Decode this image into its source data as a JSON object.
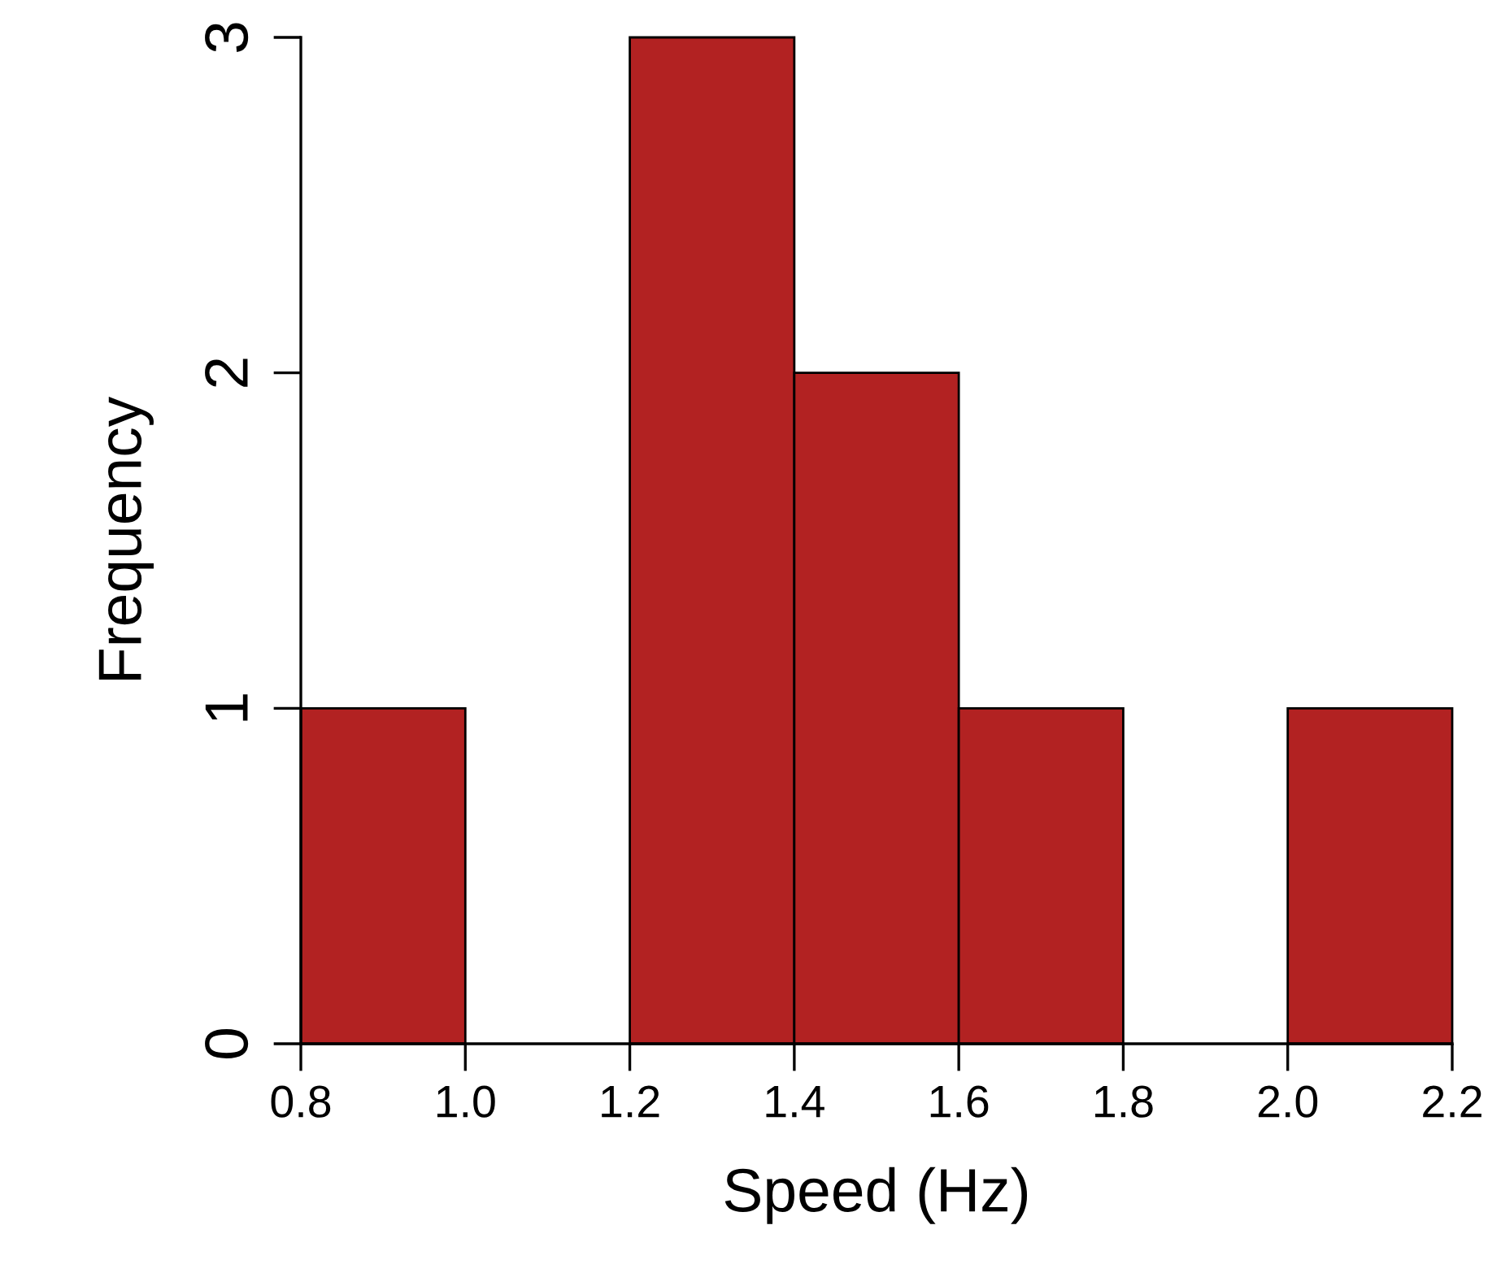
{
  "chart_data": {
    "type": "histogram",
    "xlabel": "Speed (Hz)",
    "ylabel": "Frequency",
    "bins": [
      0.8,
      1.0,
      1.2,
      1.4,
      1.6,
      1.8,
      2.0,
      2.2
    ],
    "values": [
      1,
      0,
      3,
      2,
      1,
      0,
      1
    ],
    "color": "#b22222",
    "xlim": [
      0.8,
      2.2
    ],
    "ylim": [
      0,
      3
    ],
    "xticks": [
      {
        "value": 0.8,
        "label": "0.8"
      },
      {
        "value": 1.0,
        "label": "1.0"
      },
      {
        "value": 1.2,
        "label": "1.2"
      },
      {
        "value": 1.4,
        "label": "1.4"
      },
      {
        "value": 1.6,
        "label": "1.6"
      },
      {
        "value": 1.8,
        "label": "1.8"
      },
      {
        "value": 2.0,
        "label": "2.0"
      },
      {
        "value": 2.2,
        "label": "2.2"
      }
    ],
    "yticks": [
      0,
      1,
      2,
      3
    ],
    "grid": false,
    "legend": false
  }
}
